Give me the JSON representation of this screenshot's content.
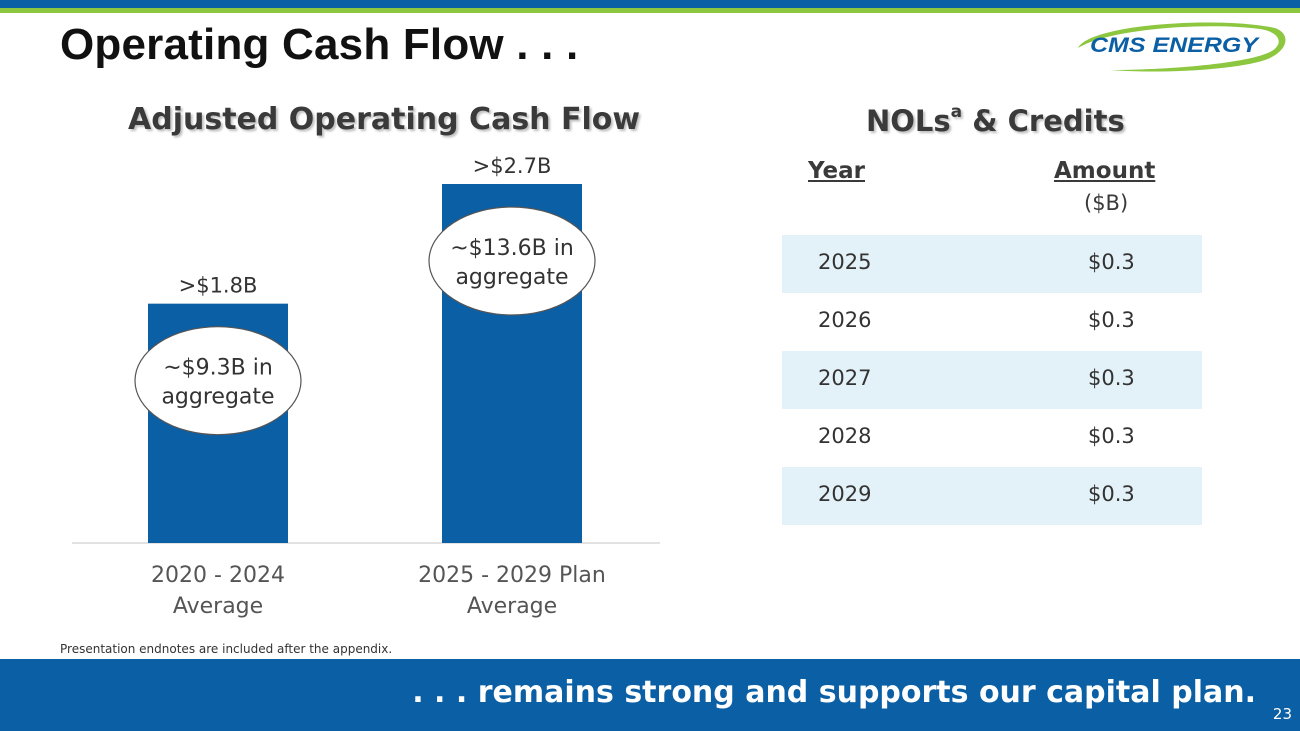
{
  "slide": {
    "title": "Operating Cash Flow . . .",
    "footnote": "Presentation endnotes are included after the appendix.",
    "banner": ". . . remains strong and supports our capital plan.",
    "page_number": "23",
    "logo_text": "CMS ENERGY"
  },
  "colors": {
    "brand_blue": "#0b5fa5",
    "brand_green": "#8dc63f",
    "row_shade": "#e3f1f8"
  },
  "chart_data": {
    "type": "bar",
    "title": "Adjusted Operating Cash Flow",
    "categories": [
      [
        "2020 - 2024",
        "Average"
      ],
      [
        "2025 - 2029 Plan",
        "Average"
      ]
    ],
    "values": [
      1.8,
      2.7
    ],
    "value_labels": [
      ">$1.8B",
      ">$2.7B"
    ],
    "annotations": [
      [
        "~$9.3B in",
        "aggregate"
      ],
      [
        "~$13.6B in",
        "aggregate"
      ]
    ],
    "ylim": [
      0,
      2.7
    ],
    "xlabel": "",
    "ylabel": "",
    "grid": false
  },
  "nols": {
    "title": "NOLs",
    "title_sup": "a",
    "title_suffix": " & Credits",
    "col_year": "Year",
    "col_amount": "Amount",
    "unit": "($B)",
    "rows": [
      {
        "year": "2025",
        "amount": "$0.3"
      },
      {
        "year": "2026",
        "amount": "$0.3"
      },
      {
        "year": "2027",
        "amount": "$0.3"
      },
      {
        "year": "2028",
        "amount": "$0.3"
      },
      {
        "year": "2029",
        "amount": "$0.3"
      }
    ]
  }
}
